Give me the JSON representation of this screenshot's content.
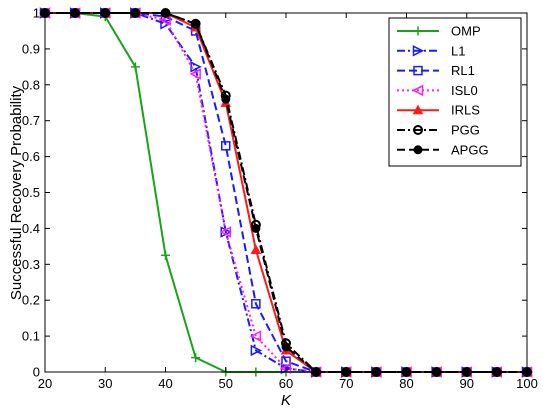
{
  "chart_data": {
    "type": "line",
    "xlabel": "K",
    "ylabel": "Successful Recovery Probability",
    "xlim": [
      20,
      100
    ],
    "ylim": [
      0,
      1
    ],
    "xticks": [
      "20",
      "30",
      "40",
      "50",
      "60",
      "70",
      "80",
      "90",
      "100"
    ],
    "yticks": [
      "0",
      "0.1",
      "0.2",
      "0.3",
      "0.4",
      "0.5",
      "0.6",
      "0.7",
      "0.8",
      "0.9",
      "1"
    ],
    "grid": false,
    "legend_position": "top-right",
    "x": [
      20,
      25,
      30,
      35,
      40,
      45,
      50,
      55,
      60,
      65,
      70,
      75,
      80,
      85,
      90,
      95,
      100
    ],
    "series": [
      {
        "name": "OMP",
        "color": "#1aa31a",
        "dash": "solid",
        "marker": "plus",
        "values": [
          1,
          1,
          0.99,
          0.85,
          0.325,
          0.04,
          0,
          0,
          0,
          0,
          0,
          0,
          0,
          0,
          0,
          0,
          0
        ]
      },
      {
        "name": "L1",
        "color": "#1a1aff",
        "dash": "dashdot",
        "marker": "triangle-right",
        "values": [
          1,
          1,
          1,
          1,
          0.97,
          0.85,
          0.39,
          0.06,
          0.01,
          0,
          0,
          0,
          0,
          0,
          0,
          0,
          0
        ]
      },
      {
        "name": "RL1",
        "color": "#1a1aff",
        "dash": "dashed",
        "marker": "square",
        "values": [
          1,
          1,
          1,
          1,
          0.99,
          0.95,
          0.63,
          0.19,
          0.03,
          0,
          0,
          0,
          0,
          0,
          0,
          0,
          0
        ]
      },
      {
        "name": "ISL0",
        "color": "#ff1aff",
        "dash": "dotted",
        "marker": "triangle-left",
        "values": [
          1,
          1,
          1,
          1,
          0.98,
          0.83,
          0.39,
          0.1,
          0.01,
          0,
          0,
          0,
          0,
          0,
          0,
          0,
          0
        ]
      },
      {
        "name": "IRLS",
        "color": "#ff1a1a",
        "dash": "solid",
        "marker": "triangle-up",
        "values": [
          1,
          1,
          1,
          1,
          1,
          0.96,
          0.75,
          0.34,
          0.06,
          0,
          0,
          0,
          0,
          0,
          0,
          0,
          0
        ]
      },
      {
        "name": "PGG",
        "color": "#000000",
        "dash": "dashdot",
        "marker": "circle",
        "values": [
          1,
          1,
          1,
          1,
          1,
          0.97,
          0.77,
          0.41,
          0.08,
          0,
          0,
          0,
          0,
          0,
          0,
          0,
          0
        ]
      },
      {
        "name": "APGG",
        "color": "#000000",
        "dash": "dashed",
        "marker": "dot",
        "values": [
          1,
          1,
          1,
          1,
          1,
          0.97,
          0.76,
          0.4,
          0.07,
          0,
          0,
          0,
          0,
          0,
          0,
          0,
          0
        ]
      }
    ]
  }
}
